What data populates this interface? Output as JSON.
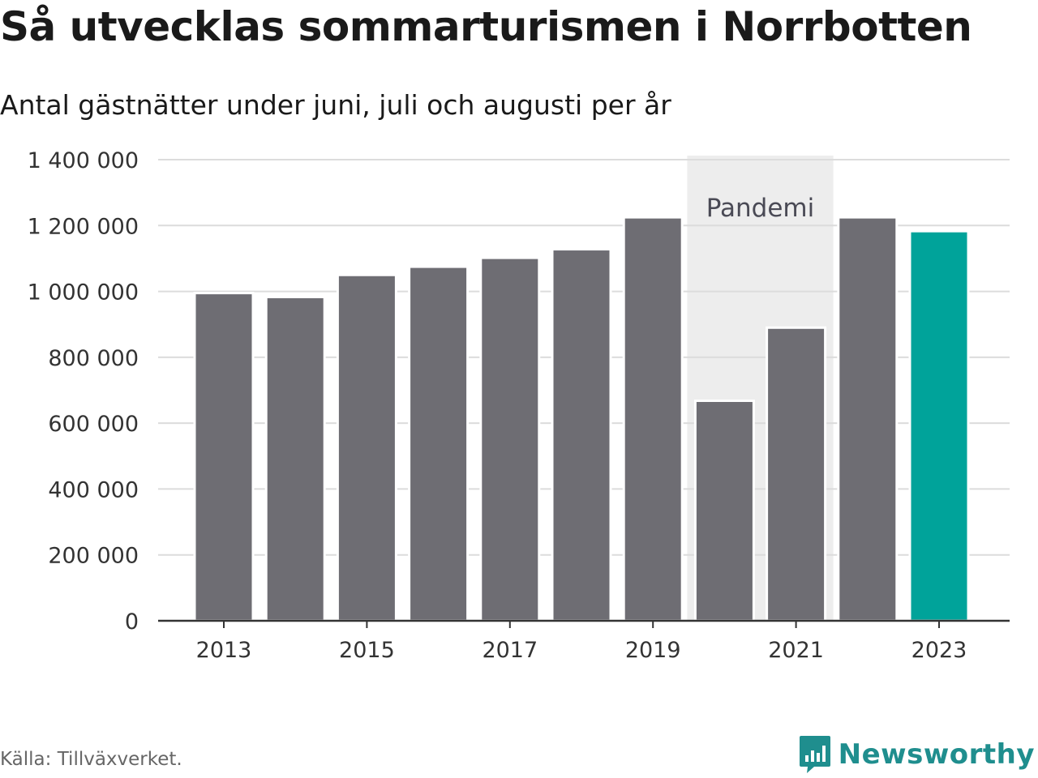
{
  "title": "Så utvecklas sommarturismen i Norrbotten",
  "subtitle": "Antal gästnätter under juni, juli och augusti per år",
  "source": "Källa: Tillväxverket.",
  "brand": "Newsworthy",
  "colors": {
    "bar": "#6e6d73",
    "highlight": "#00a39a",
    "shade": "#ededed",
    "grid": "#dcdcdc",
    "axis": "#333333",
    "brand": "#1f8e8e"
  },
  "chart_data": {
    "type": "bar",
    "title": "Så utvecklas sommarturismen i Norrbotten",
    "subtitle": "Antal gästnätter under juni, juli och augusti per år",
    "categories": [
      2013,
      2014,
      2015,
      2016,
      2017,
      2018,
      2019,
      2020,
      2021,
      2022,
      2023
    ],
    "values": [
      995000,
      983000,
      1050000,
      1075000,
      1102000,
      1128000,
      1225000,
      668000,
      890000,
      1225000,
      1183000
    ],
    "highlight_category": 2023,
    "ylim": [
      0,
      1400000
    ],
    "yticks": [
      0,
      200000,
      400000,
      600000,
      800000,
      1000000,
      1200000,
      1400000
    ],
    "ytick_labels": [
      "0",
      "200 000",
      "400 000",
      "600 000",
      "800 000",
      "1 000 000",
      "1 200 000",
      "1 400 000"
    ],
    "xtick_labels": [
      "2013",
      "2015",
      "2017",
      "2019",
      "2021",
      "2023"
    ],
    "grid": true,
    "annotation": {
      "label": "Pandemi",
      "from": 2020,
      "to": 2021
    }
  }
}
